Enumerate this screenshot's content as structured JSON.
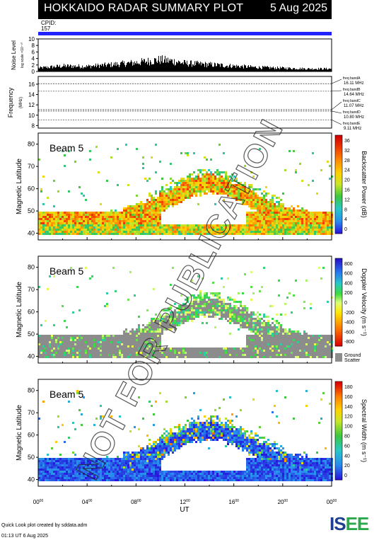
{
  "header": {
    "title": "HOKKAIDO RADAR SUMMARY PLOT",
    "date": "5 Aug 2025"
  },
  "cpid": {
    "label": "CPID:",
    "value": "157"
  },
  "noise": {
    "ylabel": "Noise Level",
    "ylabel2": "log scale ×10⁻¹⁰",
    "ticks": [
      "0",
      "2",
      "4",
      "6",
      "8",
      "10"
    ]
  },
  "frequency": {
    "ylabel": "Frequency",
    "unit": "(MHz)",
    "ticks": [
      "8",
      "10",
      "12",
      "14",
      "16"
    ],
    "bands": [
      {
        "name": "freq bandA",
        "value": "16.11 MHz",
        "mhz": 16.11
      },
      {
        "name": "freq bandB",
        "value": "14.64 MHz",
        "mhz": 14.64
      },
      {
        "name": "freq bandC",
        "value": "11.07 MHz",
        "mhz": 11.07
      },
      {
        "name": "freq bandD",
        "value": "10.80 MHz",
        "mhz": 10.8
      },
      {
        "name": "freq bandE",
        "value": "9.11 MHz",
        "mhz": 9.11
      }
    ]
  },
  "panels": [
    {
      "beam": "Beam  5",
      "ylabel": "Magnetic Latitude",
      "yticks": [
        "40",
        "50",
        "60",
        "70",
        "80"
      ],
      "cbar_label": "Backscatter Power (dB)",
      "cbar_ticks": [
        "0",
        "4",
        "8",
        "12",
        "16",
        "20",
        "24",
        "28",
        "32",
        "36"
      ]
    },
    {
      "beam": "Beam  5",
      "ylabel": "Magnetic Latitude",
      "yticks": [
        "40",
        "50",
        "60",
        "70",
        "80"
      ],
      "cbar_label": "Doppler Velocity (m s⁻¹)",
      "cbar_ticks": [
        "-800",
        "-600",
        "-400",
        "-200",
        "0",
        "200",
        "400",
        "600",
        "800"
      ],
      "ground_scatter": "Ground Scatter"
    },
    {
      "beam": "Beam  5",
      "ylabel": "Magnetic Latitude",
      "yticks": [
        "40",
        "50",
        "60",
        "70",
        "80"
      ],
      "cbar_label": "Spectral Width (m s⁻¹)",
      "cbar_ticks": [
        "0",
        "20",
        "40",
        "60",
        "80",
        "100",
        "120",
        "140",
        "160",
        "180"
      ]
    }
  ],
  "xaxis": {
    "label": "UT",
    "ticks": [
      "00",
      "04",
      "08",
      "12",
      "16",
      "20",
      "00"
    ],
    "sup": "00"
  },
  "footer": {
    "line1": "Quick Look plot created by sddata.adm",
    "line2": "01:13 UT  6 Aug 2025"
  },
  "watermark": "NOT FOR PUBLICATION",
  "logo": "ISEE",
  "colors": {
    "cpid_bar": "#2222ff",
    "ground_scatter": "#8c8c8c",
    "background": "#ffffff"
  },
  "chart_data": [
    {
      "type": "area",
      "title": "Noise Level",
      "ylim": [
        0,
        10
      ],
      "x_hours": [
        0,
        2,
        4,
        6,
        8,
        10,
        11,
        12,
        14,
        16,
        18,
        20,
        22,
        24
      ],
      "values": [
        1.0,
        1.6,
        1.5,
        2.0,
        2.6,
        3.4,
        3.0,
        2.4,
        2.0,
        1.6,
        1.2,
        1.0,
        0.8,
        0.8
      ]
    },
    {
      "type": "line",
      "title": "Frequency",
      "ylim": [
        7.5,
        17.5
      ],
      "series": [
        {
          "name": "freq bandA",
          "values": [
            16.11
          ]
        },
        {
          "name": "freq bandB",
          "values": [
            14.64
          ]
        },
        {
          "name": "freq bandC",
          "values": [
            11.07
          ]
        },
        {
          "name": "freq bandD",
          "values": [
            10.8
          ]
        },
        {
          "name": "freq bandE",
          "values": [
            9.11
          ]
        }
      ]
    },
    {
      "type": "heatmap",
      "title": "Beam 5 Backscatter Power",
      "xlim_hours": [
        0,
        24
      ],
      "ylim": [
        37,
        85
      ],
      "clim": [
        0,
        38
      ]
    },
    {
      "type": "heatmap",
      "title": "Beam 5 Doppler Velocity",
      "xlim_hours": [
        0,
        24
      ],
      "ylim": [
        37,
        85
      ],
      "clim": [
        -900,
        900
      ]
    },
    {
      "type": "heatmap",
      "title": "Beam 5 Spectral Width",
      "xlim_hours": [
        0,
        24
      ],
      "ylim": [
        37,
        85
      ],
      "clim": [
        0,
        190
      ]
    }
  ]
}
